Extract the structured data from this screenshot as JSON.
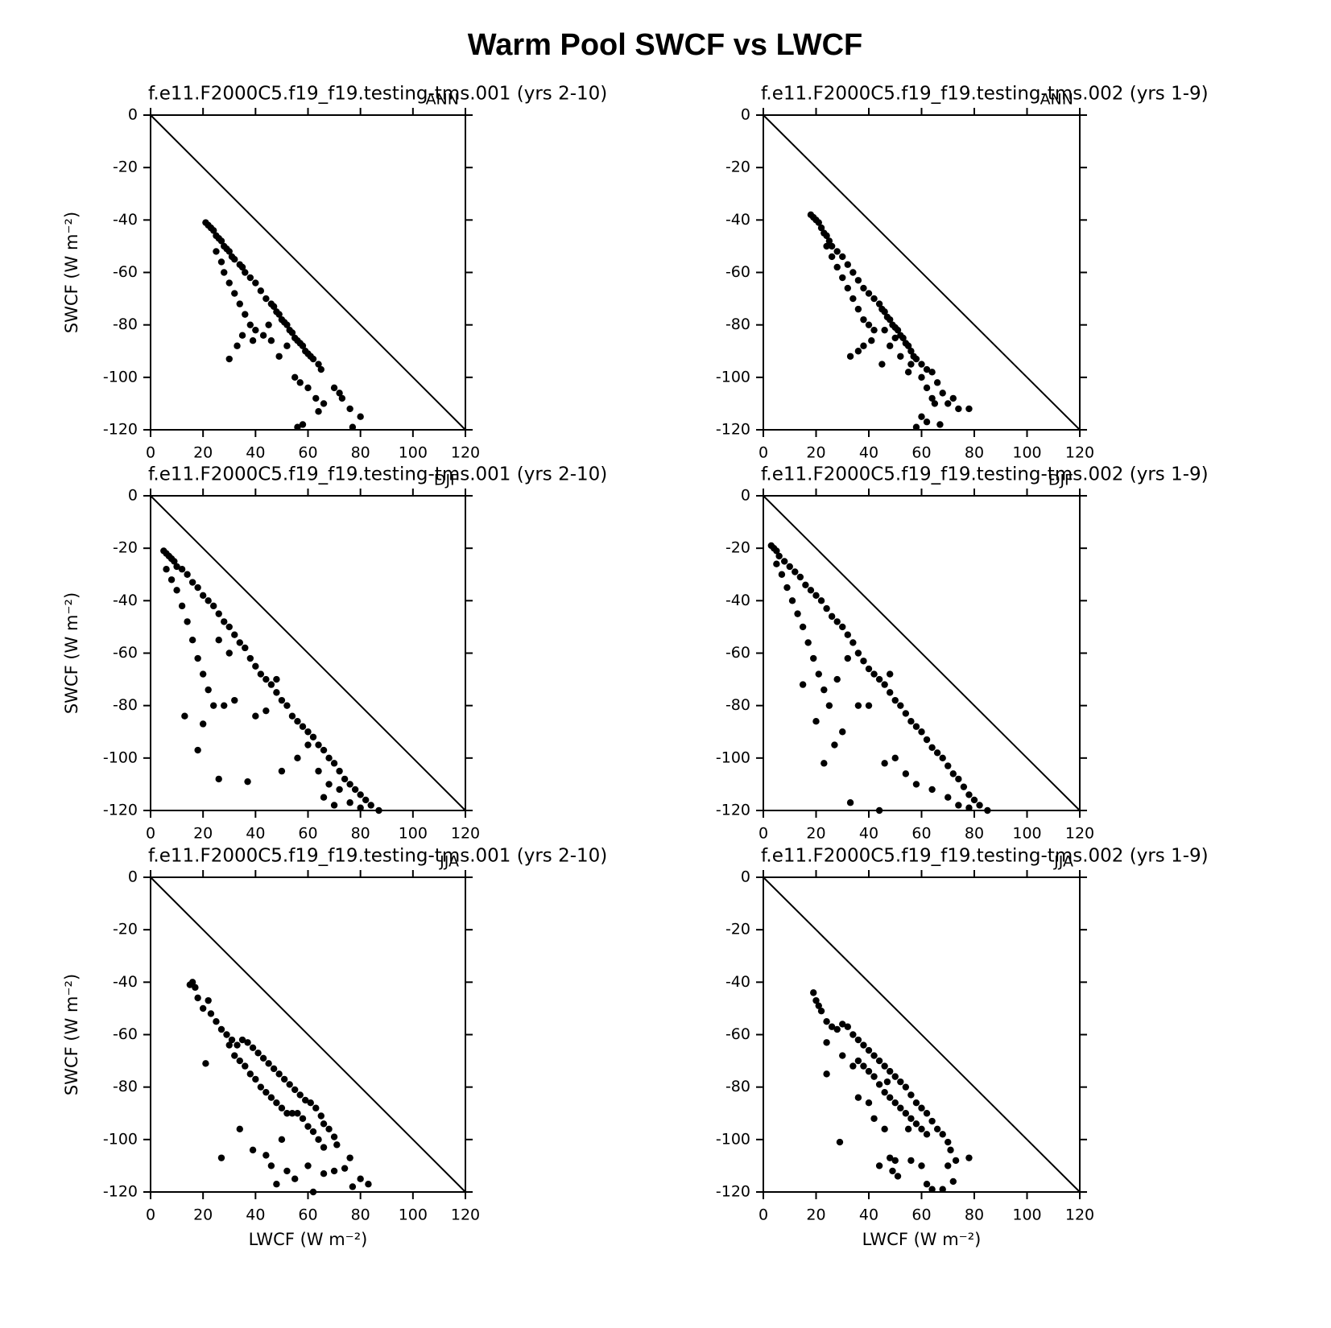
{
  "title": "Warm Pool SWCF vs LWCF",
  "chart_data": [
    {
      "type": "scatter",
      "title": "f.e11.F2000C5.f19_f19.testing-tms.001  (yrs 2-10)",
      "label": "ANN",
      "ylabel": "SWCF (W m⁻²)",
      "color": "#000000",
      "xlim": [
        0,
        120
      ],
      "ylim": [
        -120,
        0
      ],
      "xticks": [
        0,
        20,
        40,
        60,
        80,
        100,
        120
      ],
      "yticks": [
        -120,
        -100,
        -80,
        -60,
        -40,
        -20,
        0
      ],
      "x": [
        21,
        22,
        23,
        24,
        25,
        26,
        27,
        28,
        29,
        30,
        31,
        32,
        34,
        35,
        36,
        38,
        40,
        42,
        44,
        46,
        47,
        48,
        49,
        50,
        51,
        52,
        53,
        54,
        55,
        56,
        57,
        58,
        59,
        60,
        61,
        62,
        64,
        65,
        25,
        27,
        28,
        30,
        32,
        34,
        36,
        38,
        40,
        30,
        33,
        35,
        39,
        43,
        46,
        49,
        55,
        57,
        60,
        63,
        66,
        70,
        72,
        73,
        76,
        80,
        56,
        58,
        64,
        77,
        45,
        52
      ],
      "values": [
        -41,
        -42,
        -43,
        -44,
        -46,
        -47,
        -48,
        -50,
        -51,
        -52,
        -54,
        -55,
        -57,
        -58,
        -60,
        -62,
        -64,
        -67,
        -70,
        -72,
        -73,
        -75,
        -76,
        -78,
        -79,
        -80,
        -82,
        -83,
        -85,
        -86,
        -87,
        -88,
        -90,
        -91,
        -92,
        -93,
        -95,
        -97,
        -52,
        -56,
        -60,
        -64,
        -68,
        -72,
        -76,
        -80,
        -82,
        -93,
        -88,
        -84,
        -86,
        -84,
        -86,
        -92,
        -100,
        -102,
        -104,
        -108,
        -110,
        -104,
        -106,
        -108,
        -112,
        -115,
        -119,
        -118,
        -113,
        -119,
        -80,
        -88
      ]
    },
    {
      "type": "scatter",
      "title": "f.e11.F2000C5.f19_f19.testing-tms.002  (yrs 1-9)",
      "label": "ANN",
      "color": "#000000",
      "xlim": [
        0,
        120
      ],
      "ylim": [
        -120,
        0
      ],
      "xticks": [
        0,
        20,
        40,
        60,
        80,
        100,
        120
      ],
      "yticks": [
        -120,
        -100,
        -80,
        -60,
        -40,
        -20,
        0
      ],
      "x": [
        18,
        19,
        20,
        21,
        22,
        23,
        24,
        25,
        26,
        28,
        30,
        32,
        34,
        36,
        38,
        40,
        42,
        44,
        45,
        46,
        47,
        48,
        49,
        50,
        51,
        52,
        53,
        54,
        55,
        56,
        57,
        58,
        60,
        62,
        64,
        24,
        26,
        28,
        30,
        32,
        34,
        36,
        38,
        40,
        42,
        33,
        36,
        38,
        41,
        45,
        48,
        52,
        56,
        60,
        62,
        64,
        66,
        68,
        70,
        72,
        74,
        78,
        60,
        65,
        58,
        62,
        67,
        50,
        46,
        55
      ],
      "values": [
        -38,
        -39,
        -40,
        -41,
        -43,
        -45,
        -46,
        -48,
        -50,
        -52,
        -54,
        -57,
        -60,
        -63,
        -66,
        -68,
        -70,
        -72,
        -74,
        -75,
        -77,
        -78,
        -80,
        -81,
        -82,
        -84,
        -85,
        -87,
        -88,
        -90,
        -92,
        -93,
        -95,
        -97,
        -98,
        -50,
        -54,
        -58,
        -62,
        -66,
        -70,
        -74,
        -78,
        -80,
        -82,
        -92,
        -90,
        -88,
        -86,
        -95,
        -88,
        -92,
        -95,
        -100,
        -104,
        -108,
        -102,
        -106,
        -110,
        -108,
        -112,
        -112,
        -115,
        -110,
        -119,
        -117,
        -118,
        -85,
        -82,
        -98
      ]
    },
    {
      "type": "scatter",
      "title": "f.e11.F2000C5.f19_f19.testing-tms.001  (yrs 2-10)",
      "label": "DJF",
      "ylabel": "SWCF (W m⁻²)",
      "color": "#000000",
      "xlim": [
        0,
        120
      ],
      "ylim": [
        -120,
        0
      ],
      "xticks": [
        0,
        20,
        40,
        60,
        80,
        100,
        120
      ],
      "yticks": [
        -120,
        -100,
        -80,
        -60,
        -40,
        -20,
        0
      ],
      "x": [
        5,
        6,
        7,
        8,
        9,
        10,
        12,
        14,
        16,
        18,
        20,
        22,
        24,
        26,
        28,
        30,
        32,
        34,
        36,
        38,
        40,
        42,
        44,
        46,
        48,
        50,
        52,
        54,
        56,
        58,
        60,
        62,
        64,
        66,
        68,
        70,
        72,
        74,
        76,
        78,
        80,
        82,
        84,
        87,
        6,
        8,
        10,
        12,
        14,
        16,
        18,
        20,
        22,
        24,
        13,
        18,
        20,
        26,
        37,
        28,
        32,
        40,
        44,
        50,
        56,
        60,
        64,
        68,
        72,
        76,
        66,
        70,
        80,
        48,
        26,
        30
      ],
      "values": [
        -21,
        -22,
        -23,
        -24,
        -25,
        -27,
        -28,
        -30,
        -33,
        -35,
        -38,
        -40,
        -42,
        -45,
        -48,
        -50,
        -53,
        -56,
        -58,
        -62,
        -65,
        -68,
        -70,
        -72,
        -75,
        -78,
        -80,
        -84,
        -86,
        -88,
        -90,
        -92,
        -95,
        -97,
        -100,
        -102,
        -105,
        -108,
        -110,
        -112,
        -114,
        -116,
        -118,
        -120,
        -28,
        -32,
        -36,
        -42,
        -48,
        -55,
        -62,
        -68,
        -74,
        -80,
        -84,
        -97,
        -87,
        -108,
        -109,
        -80,
        -78,
        -84,
        -82,
        -105,
        -100,
        -95,
        -105,
        -110,
        -112,
        -117,
        -115,
        -118,
        -119,
        -70,
        -55,
        -60
      ]
    },
    {
      "type": "scatter",
      "title": "f.e11.F2000C5.f19_f19.testing-tms.002  (yrs 1-9)",
      "label": "DJF",
      "color": "#000000",
      "xlim": [
        0,
        120
      ],
      "ylim": [
        -120,
        0
      ],
      "xticks": [
        0,
        20,
        40,
        60,
        80,
        100,
        120
      ],
      "yticks": [
        -120,
        -100,
        -80,
        -60,
        -40,
        -20,
        0
      ],
      "x": [
        3,
        4,
        5,
        6,
        8,
        10,
        12,
        14,
        16,
        18,
        20,
        22,
        24,
        26,
        28,
        30,
        32,
        34,
        36,
        38,
        40,
        42,
        44,
        46,
        48,
        50,
        52,
        54,
        56,
        58,
        60,
        62,
        64,
        66,
        68,
        70,
        72,
        74,
        76,
        78,
        80,
        82,
        85,
        5,
        7,
        9,
        11,
        13,
        15,
        17,
        19,
        21,
        23,
        25,
        15,
        20,
        23,
        27,
        30,
        33,
        44,
        46,
        36,
        40,
        50,
        54,
        58,
        64,
        70,
        74,
        78,
        48,
        28,
        32
      ],
      "values": [
        -19,
        -20,
        -21,
        -23,
        -25,
        -27,
        -29,
        -31,
        -34,
        -36,
        -38,
        -40,
        -43,
        -46,
        -48,
        -50,
        -53,
        -56,
        -60,
        -63,
        -66,
        -68,
        -70,
        -72,
        -75,
        -78,
        -80,
        -83,
        -86,
        -88,
        -90,
        -93,
        -96,
        -98,
        -100,
        -103,
        -106,
        -108,
        -111,
        -114,
        -116,
        -118,
        -120,
        -26,
        -30,
        -35,
        -40,
        -45,
        -50,
        -56,
        -62,
        -68,
        -74,
        -80,
        -72,
        -86,
        -102,
        -95,
        -90,
        -117,
        -120,
        -102,
        -80,
        -80,
        -100,
        -106,
        -110,
        -112,
        -115,
        -118,
        -119,
        -68,
        -70,
        -62
      ]
    },
    {
      "type": "scatter",
      "title": "f.e11.F2000C5.f19_f19.testing-tms.001  (yrs 2-10)",
      "label": "JJA",
      "ylabel": "SWCF (W m⁻²)",
      "xlabel": "LWCF (W m⁻²)",
      "color": "#000000",
      "xlim": [
        0,
        120
      ],
      "ylim": [
        -120,
        0
      ],
      "xticks": [
        0,
        20,
        40,
        60,
        80,
        100,
        120
      ],
      "yticks": [
        -120,
        -100,
        -80,
        -60,
        -40,
        -20,
        0
      ],
      "x": [
        15,
        16,
        17,
        18,
        20,
        22,
        23,
        25,
        27,
        29,
        31,
        33,
        35,
        37,
        39,
        41,
        43,
        45,
        47,
        49,
        51,
        53,
        55,
        57,
        59,
        61,
        63,
        65,
        66,
        68,
        70,
        71,
        30,
        32,
        34,
        36,
        38,
        40,
        42,
        44,
        46,
        48,
        50,
        52,
        54,
        56,
        58,
        60,
        62,
        64,
        66,
        21,
        27,
        34,
        39,
        44,
        46,
        48,
        52,
        55,
        60,
        62,
        66,
        70,
        74,
        77,
        80,
        83,
        76,
        50
      ],
      "values": [
        -41,
        -40,
        -42,
        -46,
        -50,
        -47,
        -52,
        -55,
        -58,
        -60,
        -62,
        -64,
        -62,
        -63,
        -65,
        -67,
        -69,
        -71,
        -73,
        -75,
        -77,
        -79,
        -81,
        -83,
        -85,
        -86,
        -88,
        -91,
        -94,
        -96,
        -99,
        -102,
        -64,
        -68,
        -70,
        -72,
        -75,
        -77,
        -80,
        -82,
        -84,
        -86,
        -88,
        -90,
        -90,
        -90,
        -92,
        -95,
        -97,
        -100,
        -103,
        -71,
        -107,
        -96,
        -104,
        -106,
        -110,
        -117,
        -112,
        -115,
        -110,
        -120,
        -113,
        -112,
        -111,
        -118,
        -115,
        -117,
        -107,
        -100
      ]
    },
    {
      "type": "scatter",
      "title": "f.e11.F2000C5.f19_f19.testing-tms.002  (yrs 1-9)",
      "label": "JJA",
      "xlabel": "LWCF (W m⁻²)",
      "color": "#000000",
      "xlim": [
        0,
        120
      ],
      "ylim": [
        -120,
        0
      ],
      "xticks": [
        0,
        20,
        40,
        60,
        80,
        100,
        120
      ],
      "yticks": [
        -120,
        -100,
        -80,
        -60,
        -40,
        -20,
        0
      ],
      "x": [
        19,
        20,
        21,
        22,
        24,
        26,
        28,
        30,
        32,
        34,
        36,
        38,
        40,
        42,
        44,
        46,
        48,
        50,
        52,
        54,
        56,
        58,
        60,
        62,
        64,
        66,
        68,
        70,
        71,
        24,
        24,
        30,
        34,
        36,
        38,
        40,
        42,
        44,
        46,
        48,
        50,
        52,
        54,
        56,
        58,
        60,
        62,
        29,
        36,
        40,
        42,
        46,
        44,
        48,
        50,
        49,
        51,
        56,
        60,
        62,
        64,
        68,
        70,
        72,
        78,
        73,
        55,
        47
      ],
      "values": [
        -44,
        -47,
        -49,
        -51,
        -55,
        -57,
        -58,
        -56,
        -57,
        -60,
        -62,
        -64,
        -66,
        -68,
        -70,
        -72,
        -74,
        -76,
        -78,
        -80,
        -83,
        -86,
        -88,
        -90,
        -93,
        -96,
        -98,
        -101,
        -104,
        -63,
        -75,
        -68,
        -72,
        -70,
        -72,
        -74,
        -76,
        -79,
        -82,
        -84,
        -86,
        -88,
        -90,
        -92,
        -94,
        -96,
        -98,
        -101,
        -84,
        -86,
        -92,
        -96,
        -110,
        -107,
        -108,
        -112,
        -114,
        -108,
        -110,
        -117,
        -119,
        -119,
        -110,
        -116,
        -107,
        -108,
        -96,
        -78
      ]
    }
  ]
}
